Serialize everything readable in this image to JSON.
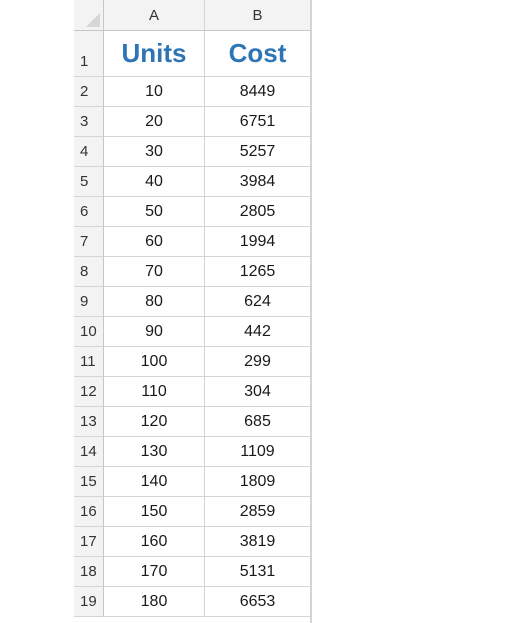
{
  "columns": [
    "A",
    "B"
  ],
  "headers": {
    "row_num": "1",
    "units": "Units",
    "cost": "Cost"
  },
  "rows": [
    {
      "n": "2",
      "units": "10",
      "cost": "8449"
    },
    {
      "n": "3",
      "units": "20",
      "cost": "6751"
    },
    {
      "n": "4",
      "units": "30",
      "cost": "5257"
    },
    {
      "n": "5",
      "units": "40",
      "cost": "3984"
    },
    {
      "n": "6",
      "units": "50",
      "cost": "2805"
    },
    {
      "n": "7",
      "units": "60",
      "cost": "1994"
    },
    {
      "n": "8",
      "units": "70",
      "cost": "1265"
    },
    {
      "n": "9",
      "units": "80",
      "cost": "624"
    },
    {
      "n": "10",
      "units": "90",
      "cost": "442"
    },
    {
      "n": "11",
      "units": "100",
      "cost": "299"
    },
    {
      "n": "12",
      "units": "110",
      "cost": "304"
    },
    {
      "n": "13",
      "units": "120",
      "cost": "685"
    },
    {
      "n": "14",
      "units": "130",
      "cost": "1109"
    },
    {
      "n": "15",
      "units": "140",
      "cost": "1809"
    },
    {
      "n": "16",
      "units": "150",
      "cost": "2859"
    },
    {
      "n": "17",
      "units": "160",
      "cost": "3819"
    },
    {
      "n": "18",
      "units": "170",
      "cost": "5131"
    },
    {
      "n": "19",
      "units": "180",
      "cost": "6653"
    }
  ],
  "colors": {
    "header_text": "#2e75b6",
    "grid": "#d4d4d4",
    "header_bg": "#f3f3f3"
  }
}
